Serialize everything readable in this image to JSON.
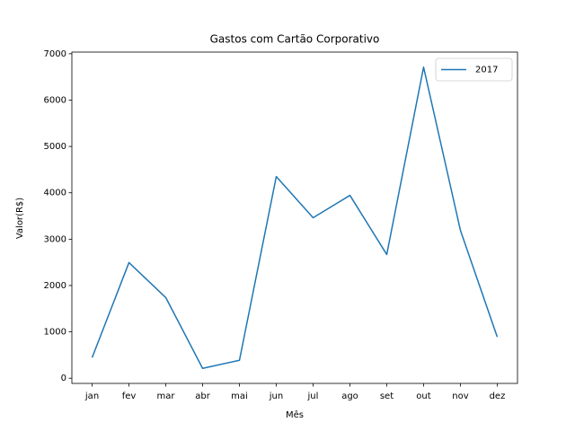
{
  "chart_data": {
    "type": "line",
    "title": "Gastos com Cartão Corporativo",
    "xlabel": "Mês",
    "ylabel": "Valor(R$)",
    "categories": [
      "jan",
      "fev",
      "mar",
      "abr",
      "mai",
      "jun",
      "jul",
      "ago",
      "set",
      "out",
      "nov",
      "dez"
    ],
    "series": [
      {
        "name": "2017",
        "color": "#1f77b4",
        "values": [
          445,
          2495,
          1740,
          213,
          387,
          4351,
          3462,
          3945,
          2669,
          6711,
          3191,
          890
        ]
      }
    ],
    "ylim": [
      -112,
      7036
    ],
    "yticks": [
      0,
      1000,
      2000,
      3000,
      4000,
      5000,
      6000,
      7000
    ],
    "grid": false,
    "legend": "upper right"
  }
}
